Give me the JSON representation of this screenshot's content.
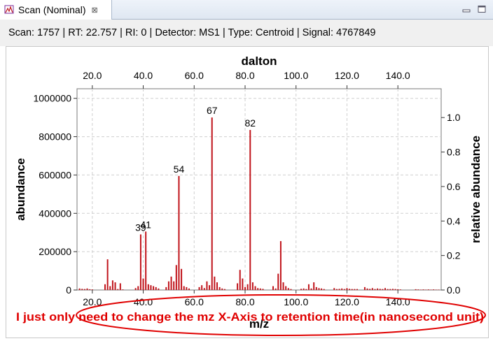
{
  "tab": {
    "title": "Scan (Nominal)",
    "close_symbol": "⊠"
  },
  "window": {
    "minimize_icon": "minimize-icon",
    "maximize_icon": "maximize-icon"
  },
  "info": {
    "text": "Scan: 1757 | RT: 22.757 | RI: 0 | Detector: MS1 | Type: Centroid | Signal: 4767849"
  },
  "annotation": {
    "text": "I just only need to change the mz X-Axis to retention time(in nanosecond unit)",
    "color": "#e00000"
  },
  "chart_data": {
    "type": "bar",
    "bar_color": "#c0141b",
    "xlabel": "m/z",
    "x2label": "dalton",
    "ylabel": "abundance",
    "y2label": "relative abundance",
    "xlim": [
      14,
      157
    ],
    "ylim": [
      0,
      1050000
    ],
    "y2lim": [
      0,
      1.167
    ],
    "xticks": [
      20,
      40,
      60,
      80,
      100,
      120,
      140
    ],
    "xtick_labels": [
      "20.0",
      "40.0",
      "60.0",
      "80.0",
      "100.0",
      "120.0",
      "140.0"
    ],
    "yticks": [
      0,
      200000,
      400000,
      600000,
      800000,
      1000000
    ],
    "ytick_labels": [
      "0",
      "200000",
      "400000",
      "600000",
      "800000",
      "1000000"
    ],
    "y2ticks": [
      0,
      0.2,
      0.4,
      0.6,
      0.8,
      1.0
    ],
    "y2tick_labels": [
      "0.0",
      "0.2",
      "0.4",
      "0.6",
      "0.8",
      "1.0"
    ],
    "grid": true,
    "peak_labels": [
      {
        "x": 39,
        "label": "39"
      },
      {
        "x": 41,
        "label": "41"
      },
      {
        "x": 54,
        "label": "54"
      },
      {
        "x": 67,
        "label": "67"
      },
      {
        "x": 82,
        "label": "82"
      }
    ],
    "x": [
      15,
      16,
      17,
      18,
      19,
      20,
      25,
      26,
      27,
      28,
      29,
      30,
      31,
      32,
      37,
      38,
      39,
      40,
      41,
      42,
      43,
      44,
      45,
      46,
      49,
      50,
      51,
      52,
      53,
      54,
      55,
      56,
      57,
      58,
      62,
      63,
      64,
      65,
      66,
      67,
      68,
      69,
      70,
      71,
      72,
      77,
      78,
      79,
      80,
      81,
      82,
      83,
      84,
      85,
      86,
      87,
      91,
      92,
      93,
      94,
      95,
      96,
      97,
      98,
      102,
      103,
      104,
      105,
      106,
      107,
      108,
      109,
      110,
      111,
      115,
      116,
      117,
      118,
      119,
      120,
      121,
      122,
      123,
      124,
      127,
      128,
      129,
      130,
      131,
      132,
      133,
      134,
      135,
      136,
      137,
      138,
      139,
      140,
      141,
      147,
      148,
      149,
      150,
      151,
      152,
      153,
      154,
      155,
      156
    ],
    "values": [
      8000,
      6000,
      5000,
      8000,
      4000,
      3000,
      30000,
      160000,
      20000,
      50000,
      40000,
      5000,
      35000,
      3000,
      10000,
      20000,
      290000,
      60000,
      305000,
      30000,
      25000,
      20000,
      15000,
      8000,
      15000,
      45000,
      70000,
      45000,
      130000,
      595000,
      110000,
      20000,
      15000,
      8000,
      15000,
      25000,
      10000,
      45000,
      25000,
      900000,
      70000,
      40000,
      15000,
      8000,
      5000,
      35000,
      105000,
      60000,
      15000,
      30000,
      835000,
      40000,
      20000,
      10000,
      8000,
      6000,
      20000,
      8000,
      85000,
      255000,
      40000,
      20000,
      10000,
      5000,
      6000,
      8000,
      5000,
      30000,
      8000,
      40000,
      15000,
      10000,
      8000,
      5000,
      10000,
      5000,
      6000,
      8000,
      5000,
      10000,
      6000,
      5000,
      5000,
      5000,
      15000,
      8000,
      6000,
      10000,
      5000,
      8000,
      6000,
      5000,
      10000,
      5000,
      5000,
      6000,
      5000,
      4000,
      3000,
      4000,
      3000,
      2000,
      3000,
      2000,
      3000,
      2000,
      3000,
      2000,
      2000
    ]
  }
}
